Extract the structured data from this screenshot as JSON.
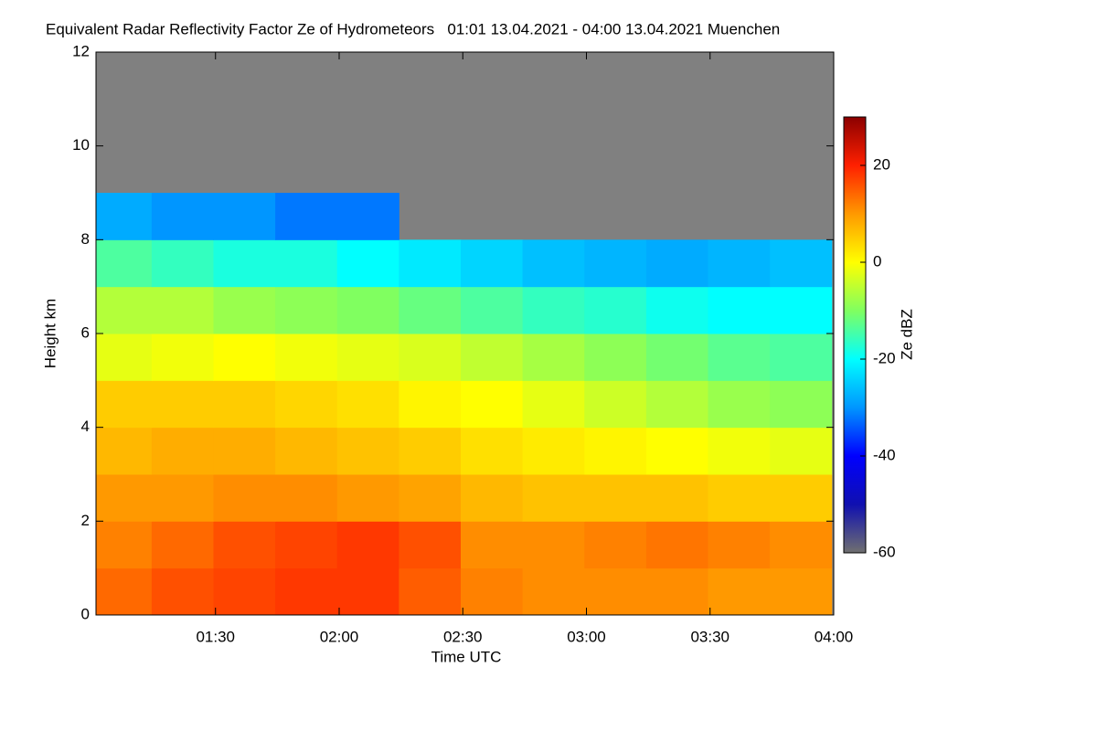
{
  "chart_data": {
    "type": "heatmap",
    "title": "Equivalent Radar Reflectivity Factor Ze of Hydrometeors   01:01 13.04.2021 - 04:00 13.04.2021 Muenchen",
    "xlabel": "Time UTC",
    "ylabel": "Height km",
    "colorbar_label": "Ze dBZ",
    "xlim": [
      61,
      240
    ],
    "xticks": [
      {
        "value": 90,
        "label": "01:30"
      },
      {
        "value": 120,
        "label": "02:00"
      },
      {
        "value": 150,
        "label": "02:30"
      },
      {
        "value": 180,
        "label": "03:00"
      },
      {
        "value": 210,
        "label": "03:30"
      },
      {
        "value": 240,
        "label": "04:00"
      }
    ],
    "ylim": [
      0,
      12
    ],
    "yticks": [
      0,
      2,
      4,
      6,
      8,
      10,
      12
    ],
    "zlim": [
      -60,
      30
    ],
    "zticks": [
      -60,
      -40,
      -20,
      0,
      20
    ],
    "background": "#808080",
    "colormap": [
      "#707070",
      "#1010b0",
      "#0000ff",
      "#0096ff",
      "#00ffff",
      "#80ff60",
      "#ffff00",
      "#ff9900",
      "#ff2000",
      "#8b0000"
    ],
    "x": [
      67,
      82,
      97,
      112,
      127,
      142,
      157,
      172,
      187,
      202,
      217,
      232
    ],
    "y": [
      0.5,
      1.5,
      2.5,
      3.5,
      4.5,
      5.5,
      6.5,
      7.5,
      8.5
    ],
    "z": [
      [
        14,
        16,
        17,
        18,
        18,
        15,
        12,
        11,
        11,
        11,
        10,
        10
      ],
      [
        12,
        14,
        16,
        17,
        18,
        16,
        11,
        11,
        12,
        13,
        12,
        11
      ],
      [
        10,
        10,
        11,
        11,
        10,
        9,
        7,
        6,
        6,
        6,
        5,
        5
      ],
      [
        7,
        8,
        8,
        7,
        6,
        5,
        3,
        2,
        1,
        0,
        -1,
        -2
      ],
      [
        5,
        5,
        5,
        4,
        3,
        1,
        0,
        -2,
        -4,
        -6,
        -8,
        -9
      ],
      [
        -2,
        -1,
        0,
        -1,
        -2,
        -3,
        -5,
        -7,
        -9,
        -11,
        -13,
        -14
      ],
      [
        -6,
        -6,
        -8,
        -9,
        -10,
        -12,
        -14,
        -16,
        -17,
        -19,
        -20,
        -20
      ],
      [
        -14,
        -16,
        -18,
        -18,
        -20,
        -22,
        -24,
        -26,
        -27,
        -28,
        -27,
        -26
      ],
      [
        -28,
        -30,
        -30,
        -32,
        -32,
        null,
        null,
        null,
        null,
        null,
        null,
        null
      ]
    ]
  }
}
